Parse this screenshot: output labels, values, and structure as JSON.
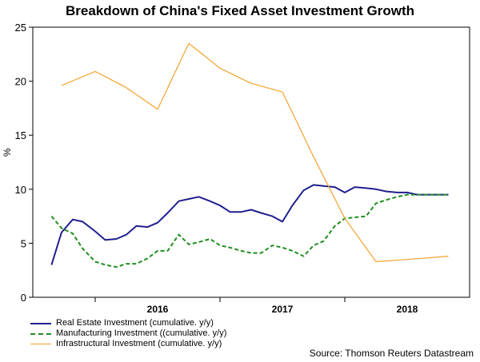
{
  "chart_data": {
    "type": "line",
    "title": "Breakdown of China's Fixed Asset Investment Growth",
    "ylabel": "%",
    "xlabel": "",
    "ylim": [
      0,
      25
    ],
    "yticks": [
      0,
      5,
      10,
      15,
      20,
      25
    ],
    "xrange": [
      2015.5,
      2019.0
    ],
    "xticks": [
      {
        "value": 2016,
        "label": "2016"
      },
      {
        "value": 2017,
        "label": "2017"
      },
      {
        "value": 2018,
        "label": "2018"
      }
    ],
    "year_boundaries": [
      2016.0,
      2017.0,
      2018.0
    ],
    "gridlines": false,
    "series": [
      {
        "name": "Real Estate Investment (cumulative. y/y)",
        "color": "#1f1f8f",
        "style": "solid",
        "x": [
          2015.65,
          2015.73,
          2015.82,
          2015.9,
          2016.0,
          2016.08,
          2016.17,
          2016.25,
          2016.33,
          2016.42,
          2016.5,
          2016.58,
          2016.67,
          2016.75,
          2016.83,
          2016.92,
          2017.0,
          2017.08,
          2017.17,
          2017.25,
          2017.33,
          2017.42,
          2017.5,
          2017.58,
          2017.67,
          2017.75,
          2017.83,
          2017.92,
          2018.0,
          2018.08,
          2018.17,
          2018.25,
          2018.33,
          2018.42,
          2018.5,
          2018.58,
          2018.67,
          2018.75,
          2018.83
        ],
        "values": [
          3.0,
          6.0,
          7.2,
          7.0,
          6.1,
          5.3,
          5.4,
          5.8,
          6.6,
          6.5,
          6.9,
          7.8,
          8.9,
          9.1,
          9.3,
          8.9,
          8.5,
          7.9,
          7.9,
          8.1,
          7.8,
          7.5,
          7.0,
          8.5,
          9.9,
          10.4,
          10.3,
          10.2,
          9.7,
          10.2,
          10.1,
          10.0,
          9.8,
          9.7,
          9.7,
          9.5,
          9.5,
          9.5,
          9.5
        ]
      },
      {
        "name": "Manufacturing Investment ((cumulative. y/y)",
        "color": "#1f8f1f",
        "style": "dashed",
        "x": [
          2015.65,
          2015.73,
          2015.82,
          2015.9,
          2016.0,
          2016.08,
          2016.17,
          2016.25,
          2016.33,
          2016.42,
          2016.5,
          2016.58,
          2016.67,
          2016.75,
          2016.83,
          2016.92,
          2017.0,
          2017.08,
          2017.17,
          2017.25,
          2017.33,
          2017.42,
          2017.5,
          2017.58,
          2017.67,
          2017.75,
          2017.83,
          2017.92,
          2018.0,
          2018.08,
          2018.17,
          2018.25,
          2018.33,
          2018.42,
          2018.5,
          2018.58,
          2018.67,
          2018.75,
          2018.83
        ],
        "values": [
          7.5,
          6.4,
          5.9,
          4.5,
          3.3,
          3.0,
          2.8,
          3.1,
          3.1,
          3.6,
          4.3,
          4.3,
          5.8,
          4.9,
          5.1,
          5.4,
          4.8,
          4.6,
          4.3,
          4.1,
          4.1,
          4.8,
          4.6,
          4.3,
          3.8,
          4.8,
          5.2,
          6.6,
          7.3,
          7.4,
          7.5,
          8.7,
          9.0,
          9.3,
          9.5,
          9.5,
          9.5,
          9.5,
          9.5
        ]
      },
      {
        "name": "Infrastructural Investment (cumulative. y/y)",
        "color": "#f2a22b",
        "style": "solid",
        "x": [
          2015.73,
          2016.0,
          2016.25,
          2016.5,
          2016.75,
          2017.0,
          2017.25,
          2017.5,
          2017.75,
          2018.0,
          2018.25,
          2018.5,
          2018.83
        ],
        "values": [
          19.6,
          20.9,
          19.4,
          17.4,
          23.5,
          21.2,
          19.8,
          19.0,
          13.0,
          7.3,
          3.3,
          3.5,
          3.8
        ]
      }
    ]
  },
  "source": "Source: Thomson Reuters Datastream"
}
